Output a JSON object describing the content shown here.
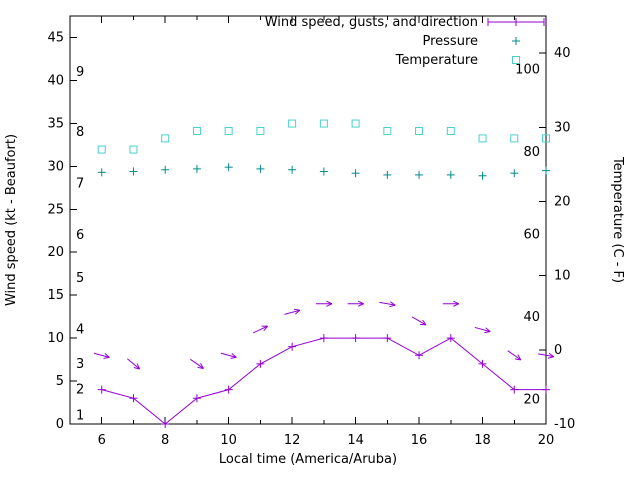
{
  "style": {
    "background": "#ffffff",
    "axis_color": "#000000",
    "text_color": "#000000",
    "wind_color": "#9400d3",
    "pressure_color": "#008b8b",
    "temperature_color": "#48d1cc"
  },
  "chart_data": {
    "type": "line",
    "title": "",
    "xlabel": "Local time (America/Aruba)",
    "ylabel_left": "Wind speed (kt - Beaufort)",
    "ylabel_right": "Temperature (C - F)",
    "xlim": [
      5,
      20
    ],
    "ylim_left_kt": [
      0,
      47.5
    ],
    "ylim_right_C": [
      -10,
      45
    ],
    "grid": false,
    "legend_position": "top-right-inside",
    "x_major_ticks": [
      6,
      8,
      10,
      12,
      14,
      16,
      18,
      20
    ],
    "x_minor_ticks": [
      7,
      9,
      11,
      13,
      15,
      17,
      19
    ],
    "y_left_ticks_kt": [
      0,
      5,
      10,
      15,
      20,
      25,
      30,
      35,
      40,
      45
    ],
    "beaufort_ticks": [
      {
        "label": "1",
        "kt": 1
      },
      {
        "label": "2",
        "kt": 4
      },
      {
        "label": "3",
        "kt": 7
      },
      {
        "label": "4",
        "kt": 11
      },
      {
        "label": "5",
        "kt": 17
      },
      {
        "label": "6",
        "kt": 22
      },
      {
        "label": "7",
        "kt": 28
      },
      {
        "label": "8",
        "kt": 34
      },
      {
        "label": "9",
        "kt": 41
      }
    ],
    "y_right_ticks_C": [
      -10,
      0,
      10,
      20,
      30,
      40
    ],
    "fahrenheit_labels": [
      {
        "label": "20",
        "F": 20
      },
      {
        "label": "40",
        "F": 40
      },
      {
        "label": "60",
        "F": 60
      },
      {
        "label": "80",
        "F": 80
      },
      {
        "label": "100",
        "F": 100
      }
    ],
    "x_hours": [
      6,
      7,
      8,
      9,
      10,
      11,
      12,
      13,
      14,
      15,
      16,
      17,
      18,
      19,
      20
    ],
    "series": [
      {
        "name": "Wind speed, gusts, and direction",
        "type": "line-plus",
        "color": "#9400d3",
        "values_kt": [
          4,
          3,
          0,
          3,
          4,
          7,
          9,
          10,
          10,
          10,
          8,
          10,
          7,
          4,
          4
        ]
      },
      {
        "name": "Wind gusts (direction arrows)",
        "type": "arrows",
        "color": "#9400d3",
        "x": [
          6,
          7,
          9,
          10,
          11,
          12,
          13,
          14,
          15,
          16,
          17,
          18,
          19,
          20
        ],
        "values_kt": [
          8,
          7,
          7,
          8,
          11,
          13,
          14,
          14,
          14,
          12,
          14,
          11,
          8,
          8
        ],
        "angles_deg": [
          15,
          40,
          35,
          15,
          -25,
          -15,
          0,
          0,
          10,
          30,
          0,
          15,
          35,
          10
        ]
      },
      {
        "name": "Pressure",
        "type": "plus",
        "color": "#008b8b",
        "values": [
          29.3,
          29.4,
          29.6,
          29.7,
          29.9,
          29.7,
          29.6,
          29.4,
          29.2,
          29.0,
          29.0,
          29.0,
          28.9,
          29.2,
          29.5
        ]
      },
      {
        "name": "Temperature",
        "type": "square-open",
        "color": "#48d1cc",
        "values_C": [
          27,
          27,
          28.5,
          29.5,
          29.5,
          29.5,
          30.5,
          30.5,
          30.5,
          29.5,
          29.5,
          29.5,
          28.5,
          28.5,
          28.5
        ]
      }
    ],
    "legend_entries": [
      "Wind speed, gusts, and direction",
      "Pressure",
      "Temperature"
    ]
  }
}
